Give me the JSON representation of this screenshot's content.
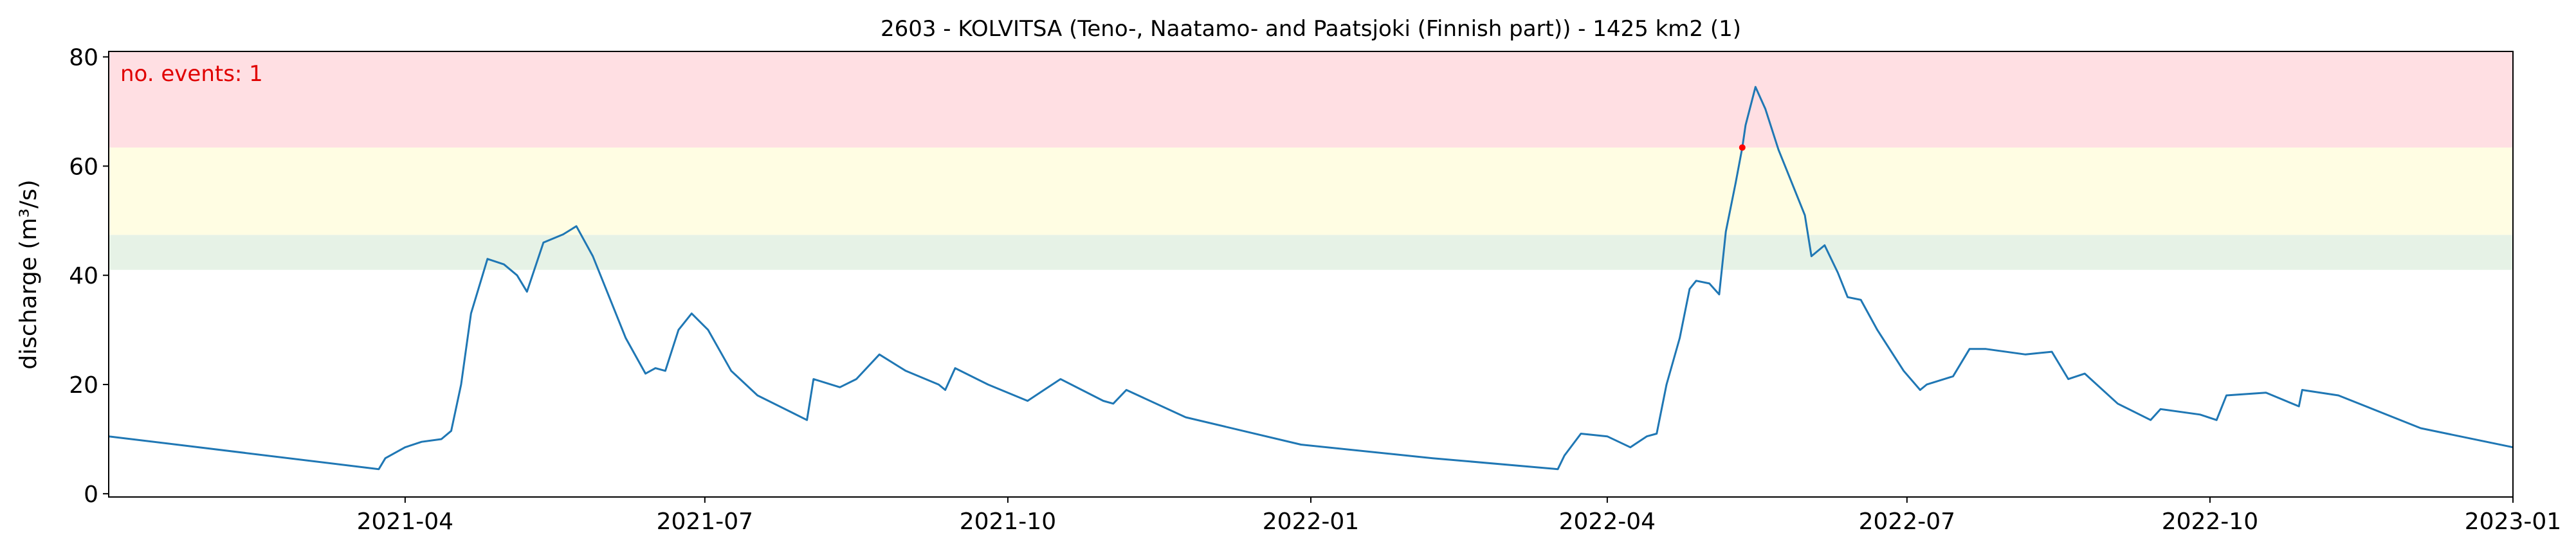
{
  "chart_data": {
    "type": "line",
    "title": "2603 - KOLVITSA (Teno-, Naatamo- and Paatsjoki (Finnish part)) - 1425 km2 (1)",
    "y_label": "discharge (m³/s)",
    "annotation": "no. events: 1",
    "annotation_color": "#e00000",
    "xlim": [
      "2021-01",
      "2023-01"
    ],
    "xticks": [
      "2021-04",
      "2021-07",
      "2021-10",
      "2022-01",
      "2022-04",
      "2022-07",
      "2022-10",
      "2023-01"
    ],
    "ylim": [
      -0.6,
      81
    ],
    "yticks": [
      0,
      20,
      40,
      60,
      80
    ],
    "thresholds": [
      41,
      47.4,
      63.4
    ],
    "band_colors": [
      "#e6f2e6",
      "#fffde3",
      "#ffdfe3"
    ],
    "x": [
      "2021-01-01",
      "2021-03-24",
      "2021-03-26",
      "2021-04-01",
      "2021-04-06",
      "2021-04-12",
      "2021-04-15",
      "2021-04-18",
      "2021-04-21",
      "2021-04-26",
      "2021-05-01",
      "2021-05-05",
      "2021-05-08",
      "2021-05-13",
      "2021-05-19",
      "2021-05-23",
      "2021-05-28",
      "2021-06-02",
      "2021-06-07",
      "2021-06-13",
      "2021-06-16",
      "2021-06-19",
      "2021-06-23",
      "2021-06-27",
      "2021-07-02",
      "2021-07-09",
      "2021-07-17",
      "2021-07-27",
      "2021-08-01",
      "2021-08-03",
      "2021-08-11",
      "2021-08-16",
      "2021-08-23",
      "2021-08-31",
      "2021-09-10",
      "2021-09-12",
      "2021-09-15",
      "2021-09-25",
      "2021-10-07",
      "2021-10-12",
      "2021-10-17",
      "2021-10-30",
      "2021-11-02",
      "2021-11-06",
      "2021-11-24",
      "2021-12-29",
      "2022-02-07",
      "2022-03-17",
      "2022-03-19",
      "2022-03-24",
      "2022-04-01",
      "2022-04-08",
      "2022-04-13",
      "2022-04-16",
      "2022-04-19",
      "2022-04-23",
      "2022-04-26",
      "2022-04-28",
      "2022-05-02",
      "2022-05-05",
      "2022-05-07",
      "2022-05-10",
      "2022-05-12",
      "2022-05-13",
      "2022-05-16",
      "2022-05-19",
      "2022-05-23",
      "2022-05-27",
      "2022-05-31",
      "2022-06-02",
      "2022-06-06",
      "2022-06-10",
      "2022-06-13",
      "2022-06-17",
      "2022-06-22",
      "2022-06-30",
      "2022-07-05",
      "2022-07-07",
      "2022-07-15",
      "2022-07-20",
      "2022-07-25",
      "2022-08-06",
      "2022-08-14",
      "2022-08-19",
      "2022-08-24",
      "2022-09-03",
      "2022-09-13",
      "2022-09-16",
      "2022-09-28",
      "2022-10-03",
      "2022-10-06",
      "2022-10-18",
      "2022-10-28",
      "2022-10-29",
      "2022-11-09",
      "2022-12-04",
      "2023-01-01"
    ],
    "series": [
      {
        "name": "discharge",
        "color": "#1f77b4",
        "values": [
          10.5,
          4.5,
          6.5,
          8.5,
          9.5,
          10,
          11.5,
          20,
          33,
          43,
          42,
          40,
          37,
          46,
          47.5,
          49,
          43.5,
          36,
          28.5,
          22,
          23,
          22.5,
          30,
          33,
          30,
          22.5,
          18,
          15,
          13.5,
          21,
          19.5,
          21,
          25.5,
          22.5,
          20,
          19,
          23,
          20,
          17,
          19,
          21,
          17,
          16.5,
          19,
          14,
          9,
          6.5,
          4.5,
          7,
          11,
          10.5,
          8.5,
          10.5,
          11,
          20,
          28.5,
          37.5,
          39,
          38.5,
          36.5,
          48,
          57,
          63.4,
          67.5,
          74.5,
          70.5,
          63,
          57,
          51,
          43.5,
          45.5,
          40.5,
          36,
          35.5,
          30,
          22.5,
          19,
          20,
          21.5,
          26.5,
          26.5,
          25.5,
          26,
          21,
          22,
          16.5,
          13.5,
          15.5,
          14.5,
          13.5,
          18,
          18.5,
          16,
          19,
          18,
          12,
          8.5
        ]
      }
    ],
    "events": {
      "x": [
        "2022-05-12"
      ],
      "values": [
        63.4
      ],
      "color": "#ff0000"
    }
  }
}
